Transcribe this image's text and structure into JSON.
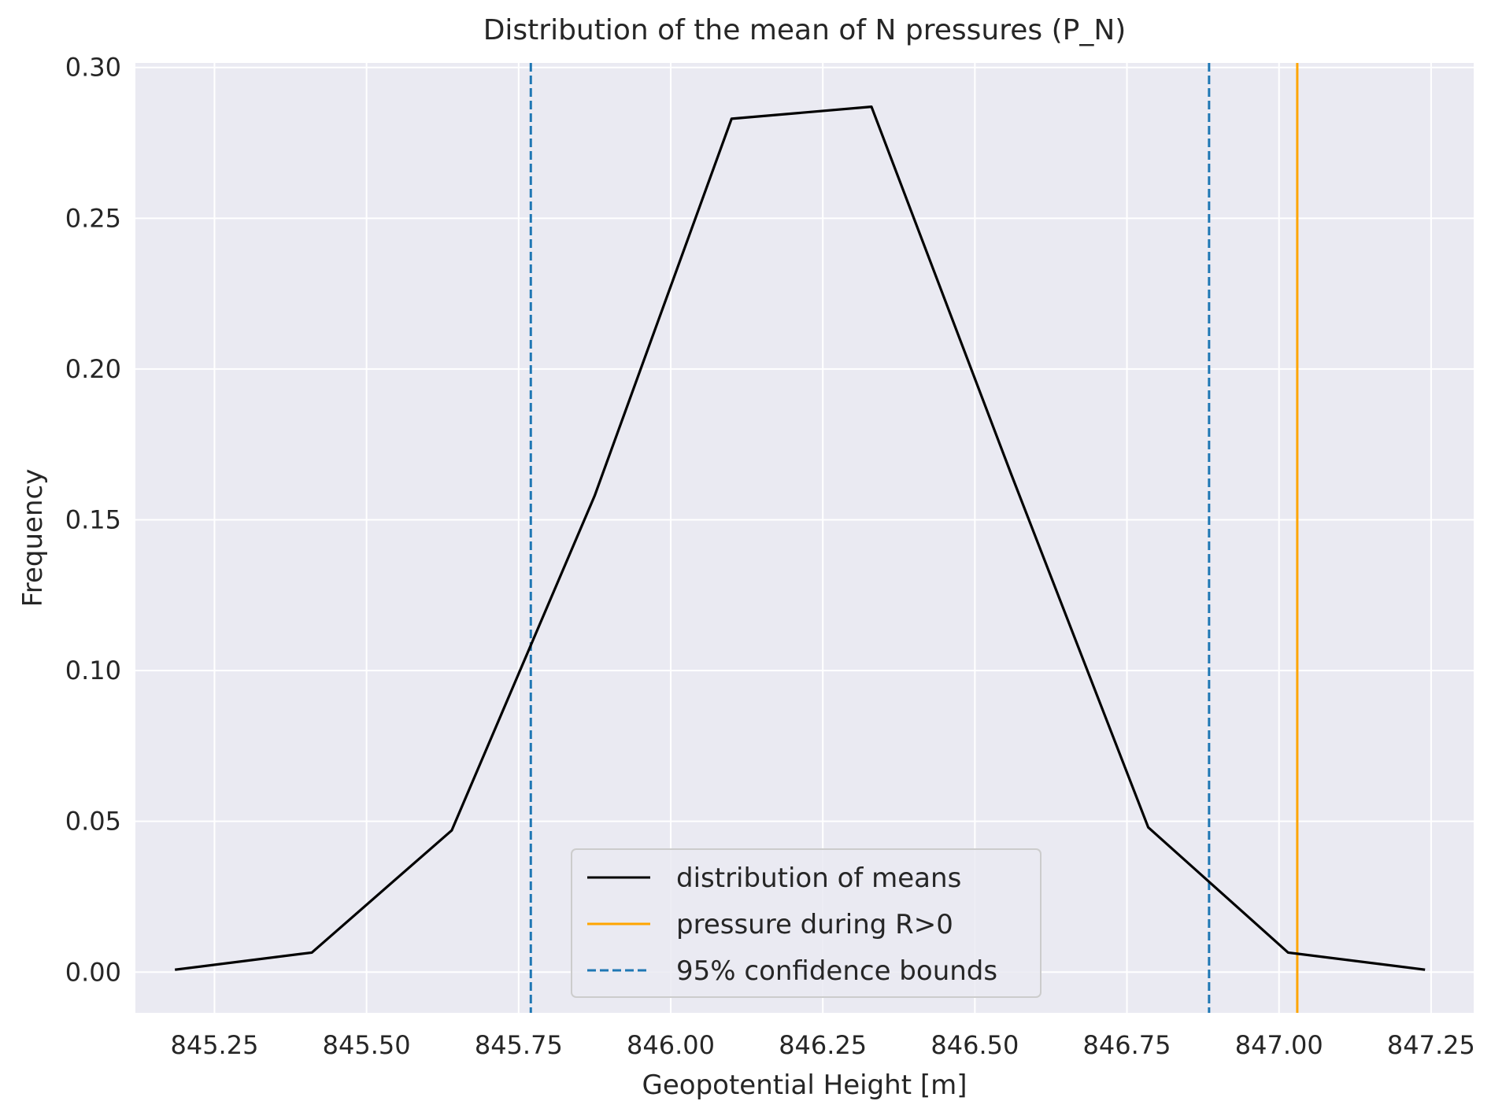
{
  "chart_data": {
    "type": "line",
    "title": "Distribution of the mean of N pressures (P_N)",
    "xlabel": "Geopotential Height [m]",
    "ylabel": "Frequency",
    "xlim": [
      845.12,
      847.32
    ],
    "ylim": [
      -0.0135,
      0.3015
    ],
    "xticks": [
      845.25,
      845.5,
      845.75,
      846.0,
      846.25,
      846.5,
      846.75,
      847.0,
      847.25
    ],
    "xtick_labels": [
      "845.25",
      "845.50",
      "845.75",
      "846.00",
      "846.25",
      "846.50",
      "846.75",
      "847.00",
      "847.25"
    ],
    "yticks": [
      0.0,
      0.05,
      0.1,
      0.15,
      0.2,
      0.25,
      0.3
    ],
    "ytick_labels": [
      "0.00",
      "0.05",
      "0.10",
      "0.15",
      "0.20",
      "0.25",
      "0.30"
    ],
    "grid": true,
    "legend_position": "lower-center",
    "series": [
      {
        "name": "distribution of means",
        "kind": "line",
        "color": "#000000",
        "x": [
          845.185,
          845.41,
          845.64,
          845.875,
          846.1,
          846.33,
          846.56,
          846.785,
          847.015,
          847.24
        ],
        "y": [
          0.0008,
          0.0065,
          0.047,
          0.158,
          0.283,
          0.287,
          0.165,
          0.048,
          0.0065,
          0.0008
        ]
      },
      {
        "name": "pressure during R>0",
        "kind": "vline",
        "color": "#FFA500",
        "x": 847.03
      },
      {
        "name": "95% confidence bounds",
        "kind": "vline-dashed",
        "color": "#1F77B4",
        "x": [
          845.77,
          846.885
        ]
      }
    ]
  }
}
